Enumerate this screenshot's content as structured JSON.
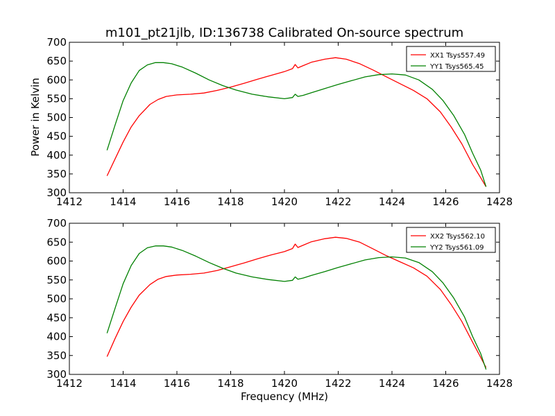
{
  "figure": {
    "title": "m101_pt21jlb, ID:136738 Calibrated On-source spectrum",
    "ylabel": "Power in Kelvin",
    "xlabel": "Frequency (MHz)"
  },
  "colors": {
    "red": "#ff0000",
    "green": "#008000"
  },
  "chart_data": [
    {
      "type": "line",
      "title": "m101_pt21jlb, ID:136738 Calibrated On-source spectrum",
      "xlabel": "",
      "ylabel": "Power in Kelvin",
      "xlim": [
        1412,
        1428
      ],
      "ylim": [
        300,
        700
      ],
      "xticks": [
        1412,
        1414,
        1416,
        1418,
        1420,
        1422,
        1424,
        1426,
        1428
      ],
      "yticks": [
        300,
        350,
        400,
        450,
        500,
        550,
        600,
        650,
        700
      ],
      "grid": false,
      "legend_position": "top-right",
      "series": [
        {
          "name": "XX1 Tsys557.49",
          "color": "#ff0000",
          "x": [
            1413.4,
            1413.7,
            1414.0,
            1414.3,
            1414.6,
            1415.0,
            1415.3,
            1415.6,
            1416.0,
            1416.5,
            1417.0,
            1417.5,
            1418.0,
            1418.5,
            1419.0,
            1419.5,
            1420.0,
            1420.3,
            1420.4,
            1420.5,
            1420.7,
            1421.0,
            1421.5,
            1421.9,
            1422.3,
            1422.8,
            1423.3,
            1423.8,
            1424.3,
            1424.8,
            1425.3,
            1425.8,
            1426.2,
            1426.6,
            1427.0,
            1427.3,
            1427.5
          ],
          "y": [
            345,
            390,
            435,
            475,
            505,
            535,
            548,
            556,
            560,
            562,
            565,
            572,
            581,
            591,
            602,
            612,
            622,
            630,
            641,
            632,
            638,
            647,
            655,
            659,
            655,
            643,
            626,
            608,
            590,
            572,
            550,
            515,
            475,
            430,
            375,
            340,
            316
          ]
        },
        {
          "name": "YY1 Tsys565.45",
          "color": "#008000",
          "x": [
            1413.4,
            1413.7,
            1414.0,
            1414.3,
            1414.6,
            1414.9,
            1415.2,
            1415.5,
            1415.8,
            1416.2,
            1416.7,
            1417.2,
            1417.7,
            1418.2,
            1418.8,
            1419.4,
            1420.0,
            1420.3,
            1420.4,
            1420.5,
            1420.7,
            1421.0,
            1421.5,
            1422.0,
            1422.5,
            1423.0,
            1423.5,
            1424.0,
            1424.5,
            1425.0,
            1425.5,
            1425.9,
            1426.3,
            1426.7,
            1427.0,
            1427.3,
            1427.5
          ],
          "y": [
            413,
            480,
            545,
            592,
            625,
            640,
            646,
            646,
            643,
            634,
            618,
            600,
            585,
            573,
            562,
            555,
            550,
            553,
            562,
            556,
            559,
            566,
            577,
            588,
            598,
            608,
            614,
            616,
            613,
            600,
            575,
            545,
            505,
            455,
            405,
            360,
            316
          ]
        }
      ]
    },
    {
      "type": "line",
      "title": "",
      "xlabel": "Frequency (MHz)",
      "ylabel": "",
      "xlim": [
        1412,
        1428
      ],
      "ylim": [
        300,
        700
      ],
      "xticks": [
        1412,
        1414,
        1416,
        1418,
        1420,
        1422,
        1424,
        1426,
        1428
      ],
      "yticks": [
        300,
        350,
        400,
        450,
        500,
        550,
        600,
        650,
        700
      ],
      "grid": false,
      "legend_position": "top-right",
      "series": [
        {
          "name": "XX2 Tsys562.10",
          "color": "#ff0000",
          "x": [
            1413.4,
            1413.7,
            1414.0,
            1414.3,
            1414.6,
            1415.0,
            1415.3,
            1415.6,
            1416.0,
            1416.5,
            1417.0,
            1417.5,
            1418.0,
            1418.5,
            1419.0,
            1419.5,
            1420.0,
            1420.3,
            1420.4,
            1420.5,
            1420.7,
            1421.0,
            1421.5,
            1421.9,
            1422.3,
            1422.8,
            1423.3,
            1423.8,
            1424.3,
            1424.8,
            1425.3,
            1425.8,
            1426.2,
            1426.6,
            1427.0,
            1427.3,
            1427.5
          ],
          "y": [
            347,
            395,
            440,
            478,
            510,
            538,
            552,
            559,
            563,
            565,
            568,
            575,
            585,
            595,
            606,
            616,
            625,
            633,
            645,
            636,
            642,
            651,
            659,
            663,
            660,
            650,
            632,
            614,
            598,
            582,
            560,
            525,
            485,
            440,
            385,
            345,
            318
          ]
        },
        {
          "name": "YY2 Tsys561.09",
          "color": "#008000",
          "x": [
            1413.4,
            1413.7,
            1414.0,
            1414.3,
            1414.6,
            1414.9,
            1415.2,
            1415.5,
            1415.8,
            1416.2,
            1416.7,
            1417.2,
            1417.7,
            1418.2,
            1418.8,
            1419.4,
            1420.0,
            1420.3,
            1420.4,
            1420.5,
            1420.7,
            1421.0,
            1421.5,
            1422.0,
            1422.5,
            1423.0,
            1423.5,
            1424.0,
            1424.5,
            1425.0,
            1425.5,
            1425.9,
            1426.3,
            1426.7,
            1427.0,
            1427.3,
            1427.5
          ],
          "y": [
            409,
            475,
            540,
            588,
            620,
            635,
            640,
            640,
            637,
            628,
            613,
            596,
            581,
            568,
            558,
            551,
            546,
            549,
            558,
            552,
            555,
            562,
            572,
            583,
            593,
            603,
            609,
            611,
            608,
            596,
            572,
            542,
            502,
            452,
            400,
            355,
            313
          ]
        }
      ]
    }
  ]
}
